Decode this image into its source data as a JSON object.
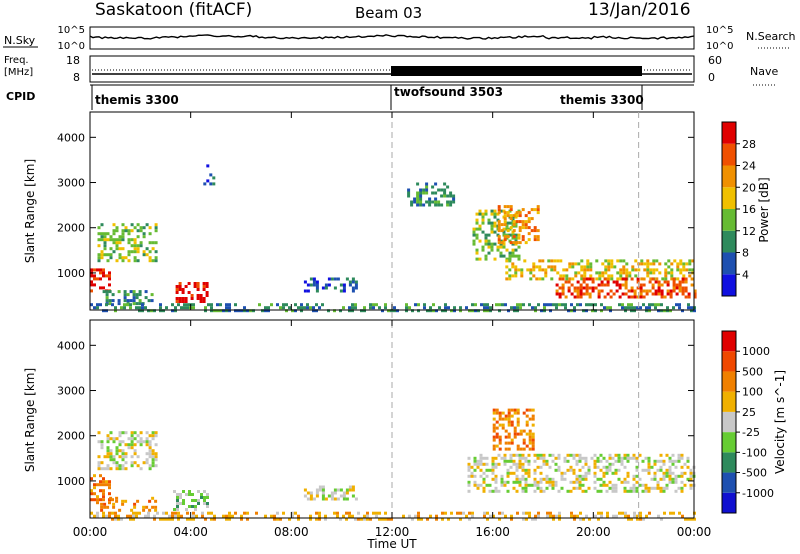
{
  "header": {
    "title": "Saskatoon (fitACF)",
    "beam": "Beam 03",
    "date": "13/Jan/2016"
  },
  "top_panel": {
    "left_label": "N.Sky",
    "left_ticks": [
      "10^5",
      "10^0"
    ],
    "right_ticks": [
      "10^5",
      "10^0"
    ],
    "right_label": "N.Search"
  },
  "freq_panel": {
    "left_label_1": "Freq.",
    "left_label_2": "[MHz]",
    "left_ticks": [
      "18",
      "8"
    ],
    "right_ticks": [
      "60",
      "0"
    ],
    "right_label": "Nave"
  },
  "cpid": {
    "label": "CPID",
    "segments": [
      {
        "name": "themis 3300",
        "start_h": 0,
        "end_h": 12
      },
      {
        "name": "twofsound 3503",
        "start_h": 12,
        "end_h": 21.8
      },
      {
        "name": "themis 3300",
        "start_h": 21.8,
        "end_h": 24
      }
    ]
  },
  "colors": {
    "power": [
      "#1010e0",
      "#1e50b0",
      "#2e8a5c",
      "#66bb33",
      "#f0c000",
      "#f09000",
      "#f05000",
      "#e00000"
    ],
    "velocity": [
      "#e00000",
      "#f04800",
      "#f08000",
      "#f0b000",
      "#c8c8c8",
      "#66cc33",
      "#2e8a5c",
      "#1e50b0",
      "#1010d0"
    ]
  },
  "chart_data": [
    {
      "type": "heatmap",
      "name": "power",
      "ylabel": "Slant Range [km]",
      "ylim": [
        180,
        4560
      ],
      "yticks": [
        1000,
        2000,
        3000,
        4000
      ],
      "colorbar_label": "Power [dB]",
      "colorbar_ticks": [
        "4",
        "8",
        "12",
        "16",
        "20",
        "24",
        "28"
      ],
      "regions": [
        {
          "t0": 0.0,
          "t1": 0.8,
          "r0": 600,
          "r1": 1100,
          "level": 7
        },
        {
          "t0": 0.3,
          "t1": 2.6,
          "r0": 1300,
          "r1": 2100,
          "level": 3
        },
        {
          "t0": 0.5,
          "t1": 2.5,
          "r0": 350,
          "r1": 620,
          "level": 2
        },
        {
          "t0": 3.4,
          "t1": 4.6,
          "r0": 350,
          "r1": 800,
          "level": 7
        },
        {
          "t0": 4.5,
          "t1": 4.9,
          "r0": 3000,
          "r1": 3400,
          "level": 1
        },
        {
          "t0": 8.5,
          "t1": 10.6,
          "r0": 600,
          "r1": 900,
          "level": 1
        },
        {
          "t0": 12.6,
          "t1": 14.5,
          "r0": 2500,
          "r1": 3000,
          "level": 2
        },
        {
          "t0": 15.2,
          "t1": 17.0,
          "r0": 1300,
          "r1": 2400,
          "level": 3
        },
        {
          "t0": 16.2,
          "t1": 17.8,
          "r0": 1700,
          "r1": 2500,
          "level": 5
        },
        {
          "t0": 16.5,
          "t1": 24.0,
          "r0": 900,
          "r1": 1300,
          "level": 4
        },
        {
          "t0": 18.5,
          "t1": 24.0,
          "r0": 500,
          "r1": 900,
          "level": 6
        },
        {
          "t0": 0.0,
          "t1": 24.0,
          "r0": 180,
          "r1": 330,
          "level": 2
        }
      ]
    },
    {
      "type": "heatmap",
      "name": "velocity",
      "ylabel": "Slant Range [km]",
      "ylim": [
        180,
        4560
      ],
      "yticks": [
        1000,
        2000,
        3000,
        4000
      ],
      "colorbar_label": "Velocity [m s^-1]",
      "colorbar_ticks": [
        "1000",
        "500",
        "100",
        "25",
        "-25",
        "-100",
        "-500",
        "-1000"
      ],
      "regions": [
        {
          "t0": 0.0,
          "t1": 0.9,
          "r0": 550,
          "r1": 1150,
          "level": 2
        },
        {
          "t0": 0.3,
          "t1": 2.6,
          "r0": 1300,
          "r1": 2100,
          "level": 4
        },
        {
          "t0": 0.4,
          "t1": 2.6,
          "r0": 350,
          "r1": 650,
          "level": 2
        },
        {
          "t0": 3.3,
          "t1": 4.7,
          "r0": 350,
          "r1": 800,
          "level": 5
        },
        {
          "t0": 8.5,
          "t1": 10.6,
          "r0": 600,
          "r1": 900,
          "level": 4
        },
        {
          "t0": 16.0,
          "t1": 17.6,
          "r0": 1700,
          "r1": 2600,
          "level": 2
        },
        {
          "t0": 15.0,
          "t1": 24.0,
          "r0": 800,
          "r1": 1600,
          "level": 4
        },
        {
          "t0": 0.0,
          "t1": 24.0,
          "r0": 180,
          "r1": 320,
          "level": 3
        }
      ]
    }
  ],
  "x_axis": {
    "ticks": [
      "00:00",
      "04:00",
      "08:00",
      "12:00",
      "16:00",
      "20:00",
      "00:00"
    ],
    "label": "Time UT"
  }
}
